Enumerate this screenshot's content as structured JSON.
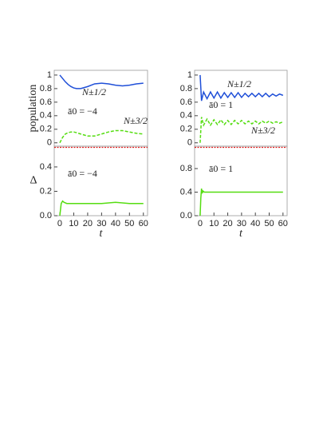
{
  "chart_data": [
    {
      "type": "line",
      "ylabel": "population",
      "x": [
        0,
        2,
        4,
        6,
        8,
        10,
        12,
        15,
        20,
        25,
        30,
        35,
        40,
        45,
        50,
        55,
        60
      ],
      "series": [
        {
          "name": "N±1/2",
          "color": "#1f4fd8",
          "dash": false,
          "values": [
            1,
            0.95,
            0.9,
            0.86,
            0.83,
            0.81,
            0.8,
            0.8,
            0.83,
            0.87,
            0.88,
            0.87,
            0.85,
            0.84,
            0.85,
            0.87,
            0.88
          ]
        },
        {
          "name": "N±3/2",
          "color": "#55dd11",
          "dash": true,
          "values": [
            0,
            0.08,
            0.13,
            0.15,
            0.16,
            0.16,
            0.15,
            0.13,
            0.1,
            0.1,
            0.13,
            0.16,
            0.18,
            0.18,
            0.16,
            0.14,
            0.13
          ]
        }
      ],
      "annotations": [
        "ā0 = −4"
      ],
      "xlim": [
        -4,
        63
      ],
      "ylim": [
        -0.05,
        1.07
      ],
      "yticks": [
        0,
        0.2,
        0.4,
        0.6,
        0.8,
        1
      ]
    },
    {
      "type": "line",
      "xlabel": "t",
      "ylabel": "Δ",
      "x": [
        0,
        1,
        2,
        3,
        5,
        10,
        20,
        30,
        40,
        50,
        60
      ],
      "series": [
        {
          "color": "#55dd11",
          "dash": false,
          "values": [
            0,
            0.1,
            0.12,
            0.11,
            0.1,
            0.1,
            0.1,
            0.1,
            0.11,
            0.1,
            0.1
          ]
        }
      ],
      "annotations": [
        "ā0 = −4"
      ],
      "xlim": [
        -4,
        63
      ],
      "ylim": [
        0,
        0.57
      ],
      "xticks": [
        0,
        10,
        20,
        30,
        40,
        50,
        60
      ],
      "yticks": [
        {
          "value": 0,
          "label": "0.0"
        },
        0.2,
        0.4
      ]
    },
    {
      "type": "line",
      "x": [
        0,
        1,
        2.5,
        5,
        7.5,
        10,
        12.5,
        15,
        17.5,
        20,
        22.5,
        25,
        27.5,
        30,
        32.5,
        35,
        37.5,
        40,
        42.5,
        45,
        47.5,
        50,
        52.5,
        55,
        57.5,
        60
      ],
      "series": [
        {
          "name": "N±1/2",
          "color": "#1f4fd8",
          "dash": false,
          "values": [
            1,
            0.62,
            0.75,
            0.65,
            0.75,
            0.66,
            0.75,
            0.66,
            0.74,
            0.67,
            0.74,
            0.67,
            0.74,
            0.67,
            0.73,
            0.68,
            0.73,
            0.68,
            0.73,
            0.68,
            0.73,
            0.68,
            0.72,
            0.69,
            0.72,
            0.7
          ]
        },
        {
          "name": "N±3/2",
          "color": "#55dd11",
          "dash": true,
          "values": [
            0,
            0.38,
            0.26,
            0.35,
            0.26,
            0.34,
            0.27,
            0.34,
            0.27,
            0.33,
            0.27,
            0.33,
            0.28,
            0.33,
            0.28,
            0.32,
            0.28,
            0.32,
            0.28,
            0.32,
            0.29,
            0.32,
            0.29,
            0.31,
            0.29,
            0.31
          ]
        }
      ],
      "annotations": [
        "ā0 = 1"
      ],
      "xlim": [
        -4,
        63
      ],
      "ylim": [
        -0.05,
        1.07
      ],
      "yticks": [
        0,
        0.2,
        0.4,
        0.6,
        0.8,
        1
      ]
    },
    {
      "type": "line",
      "xlabel": "t",
      "x": [
        0,
        0.5,
        1,
        1.5,
        2,
        3,
        5,
        10,
        20,
        30,
        40,
        50,
        60
      ],
      "series": [
        {
          "color": "#55dd11",
          "dash": false,
          "values": [
            0,
            0.3,
            0.46,
            0.38,
            0.42,
            0.4,
            0.4,
            0.4,
            0.4,
            0.4,
            0.4,
            0.4,
            0.4
          ]
        }
      ],
      "annotations": [
        "ā0 = 1"
      ],
      "xlim": [
        -4,
        63
      ],
      "ylim": [
        0,
        1.18
      ],
      "xticks": [
        0,
        10,
        20,
        30,
        40,
        50,
        60
      ],
      "yticks": [
        {
          "value": 0,
          "label": "0.0"
        },
        0.4,
        0.8
      ]
    }
  ]
}
